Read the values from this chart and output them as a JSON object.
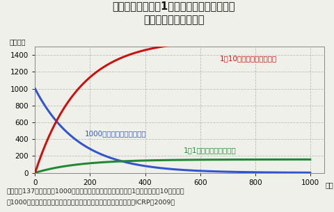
{
  "title_line1": "放射性セシウムの1回摂取と長期摂取による",
  "title_line2": "体内残存量の経時推移",
  "ylabel": "ベクレル",
  "xlabel_label": "日数",
  "caption_line1": "セシウム137について、1000ベクレルを一度に摂取した場合と1ベクレル及び10ベクレル",
  "caption_line2": "を1000日間、毎日摂取した場合の全身放射能（ベクレル）の推移（ICRP・2009）",
  "xlim": [
    0,
    1050
  ],
  "ylim": [
    0,
    1500
  ],
  "xticks": [
    0,
    200,
    400,
    600,
    800,
    1000
  ],
  "yticks": [
    0,
    200,
    400,
    600,
    800,
    1000,
    1200,
    1400
  ],
  "half_life": 110,
  "days": 1001,
  "single_dose": 1000,
  "daily_1bq": 1,
  "daily_10bq": 10,
  "color_single": "#3355cc",
  "color_1bq": "#228833",
  "color_10bq": "#cc1111",
  "linewidth": 2.2,
  "bg_color": "#f0f0eb",
  "grid_color": "#bbbbbb",
  "annotation_single": "1000ベクレルを一度に摂取",
  "annotation_1bq": "1日1ベクレルを毎日摂取",
  "annotation_10bq": "1日10ベクレルを毎日摂取",
  "title_fontsize": 10.5,
  "annot_fontsize": 7.5,
  "tick_fontsize": 7.5,
  "ylabel_fontsize": 7,
  "xlabel_fontsize": 7,
  "caption_fontsize": 6.8
}
